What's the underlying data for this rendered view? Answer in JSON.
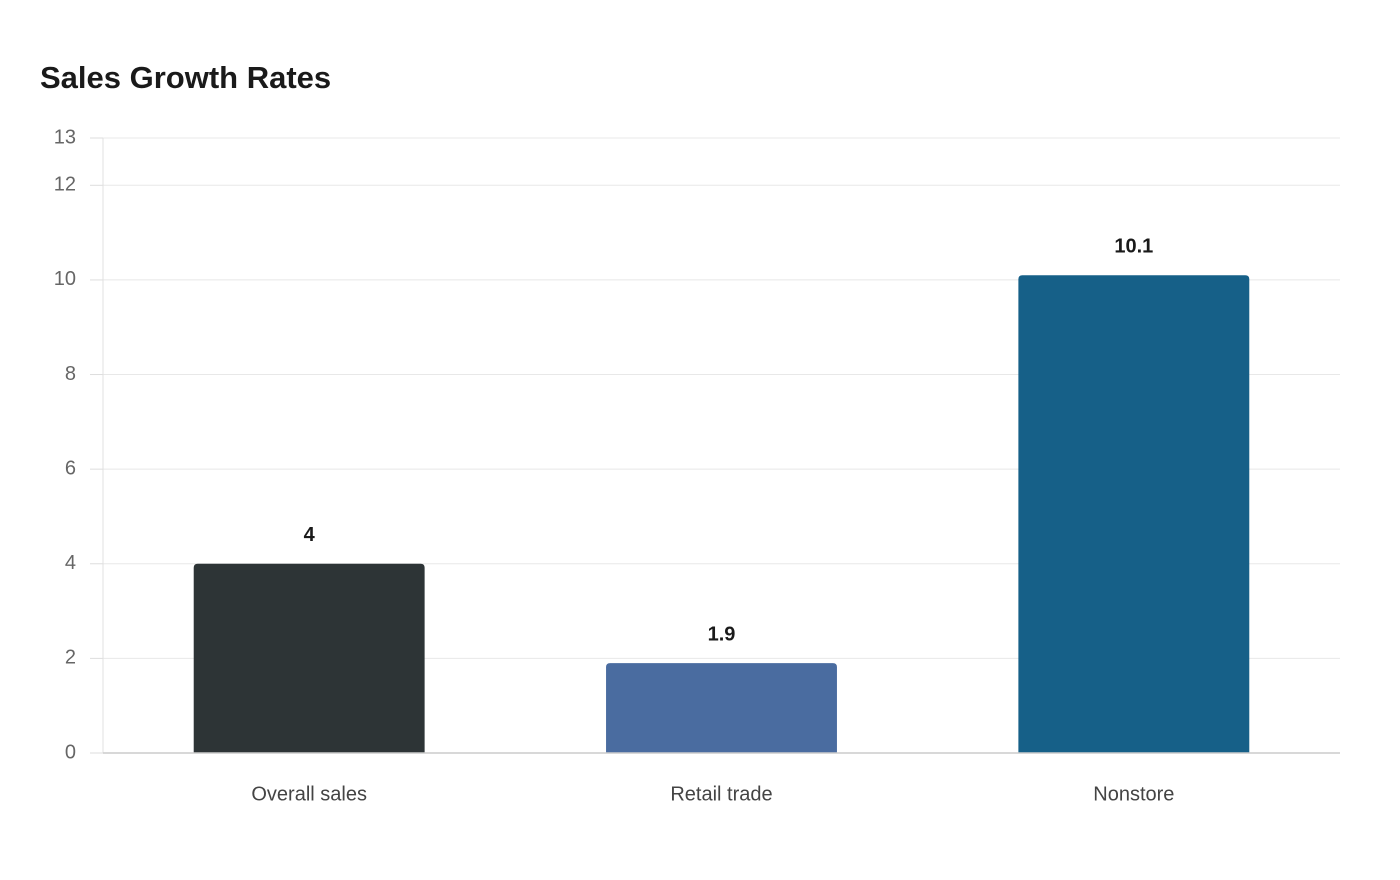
{
  "chart_data": {
    "type": "bar",
    "title": "Sales Growth Rates",
    "categories": [
      "Overall sales",
      "Retail trade",
      "Nonstore"
    ],
    "values": [
      4,
      1.9,
      10.1
    ],
    "colors": [
      "#2d3436",
      "#4a6ca0",
      "#166088"
    ],
    "ylim": [
      0,
      13
    ],
    "yticks": [
      0,
      2,
      4,
      6,
      8,
      10,
      12,
      13
    ],
    "grid": true
  }
}
